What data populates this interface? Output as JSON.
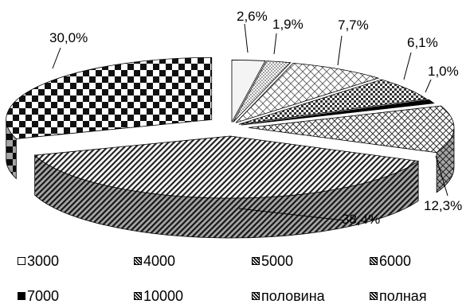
{
  "chart_data": {
    "type": "pie",
    "title": "",
    "style": "3d-exploded",
    "slices": [
      {
        "label": "3000",
        "value": 2.6,
        "value_label": "2,6%",
        "pattern": "blank"
      },
      {
        "label": "4000",
        "value": 1.9,
        "value_label": "1,9%",
        "pattern": "dots"
      },
      {
        "label": "5000",
        "value": 7.7,
        "value_label": "7,7%",
        "pattern": "grid"
      },
      {
        "label": "6000",
        "value": 6.1,
        "value_label": "6,1%",
        "pattern": "checker-small"
      },
      {
        "label": "7000",
        "value": 1.0,
        "value_label": "1,0%",
        "pattern": "solid"
      },
      {
        "label": "10000",
        "value": 12.3,
        "value_label": "12,3%",
        "pattern": "diamond"
      },
      {
        "label": "половина",
        "value": 38.4,
        "value_label": "38,4%",
        "pattern": "diagonal"
      },
      {
        "label": "полная",
        "value": 30.0,
        "value_label": "30,0%",
        "pattern": "checker-large"
      }
    ],
    "legend_position": "bottom"
  },
  "colors": {
    "ink": "#000000",
    "background": "#ffffff",
    "light_fill": "#f2f2f2"
  }
}
